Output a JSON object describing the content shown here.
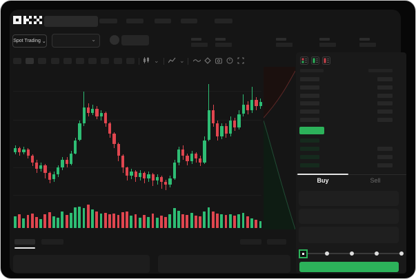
{
  "app": {
    "name": "OKX",
    "logo_text": "OKX"
  },
  "icons": {
    "chevron_down": "⌄"
  },
  "header": {
    "nav_item_count": 5
  },
  "market_bar": {
    "market_selector_label": "Spot Trading",
    "stat_group_count": 5
  },
  "chart_toolbar": {
    "timeframe_count": 10,
    "active_timeframe_index": 1,
    "tool_icons": [
      "candle-type-icon",
      "indicators-icon",
      "line-tool-icon",
      "draw-icon",
      "camera-icon",
      "replay-icon",
      "fullscreen-icon"
    ]
  },
  "chart_data": {
    "type": "candlestick",
    "up_color": "#2ebd74",
    "down_color": "#e0464f",
    "value_scale": [
      0,
      100
    ],
    "grid": true,
    "candles": [
      [
        36,
        41,
        34,
        39
      ],
      [
        39,
        40,
        33,
        36
      ],
      [
        36,
        40,
        34,
        38
      ],
      [
        38,
        39,
        31,
        33
      ],
      [
        33,
        34,
        25,
        28
      ],
      [
        28,
        30,
        20,
        23
      ],
      [
        23,
        28,
        21,
        26
      ],
      [
        26,
        27,
        16,
        20
      ],
      [
        20,
        21,
        12,
        15
      ],
      [
        15,
        21,
        13,
        19
      ],
      [
        19,
        26,
        17,
        24
      ],
      [
        24,
        32,
        22,
        30
      ],
      [
        30,
        32,
        24,
        27
      ],
      [
        27,
        37,
        26,
        35
      ],
      [
        35,
        47,
        34,
        45
      ],
      [
        45,
        60,
        44,
        58
      ],
      [
        58,
        82,
        56,
        70
      ],
      [
        70,
        73,
        63,
        66
      ],
      [
        66,
        72,
        64,
        69
      ],
      [
        69,
        71,
        61,
        63
      ],
      [
        63,
        68,
        60,
        66
      ],
      [
        66,
        67,
        55,
        58
      ],
      [
        58,
        59,
        47,
        50
      ],
      [
        50,
        51,
        39,
        42
      ],
      [
        42,
        43,
        29,
        33
      ],
      [
        33,
        34,
        20,
        24
      ],
      [
        24,
        25,
        14,
        18
      ],
      [
        18,
        23,
        15,
        21
      ],
      [
        21,
        22,
        13,
        17
      ],
      [
        17,
        22,
        14,
        20
      ],
      [
        20,
        21,
        12,
        16
      ],
      [
        16,
        21,
        13,
        19
      ],
      [
        19,
        20,
        10,
        14
      ],
      [
        14,
        19,
        11,
        17
      ],
      [
        17,
        18,
        8,
        13
      ],
      [
        13,
        15,
        7,
        11
      ],
      [
        11,
        18,
        9,
        16
      ],
      [
        16,
        30,
        15,
        28
      ],
      [
        28,
        40,
        26,
        38
      ],
      [
        38,
        41,
        30,
        33
      ],
      [
        33,
        35,
        26,
        29
      ],
      [
        29,
        37,
        27,
        35
      ],
      [
        35,
        36,
        28,
        31
      ],
      [
        31,
        33,
        25,
        28
      ],
      [
        28,
        48,
        27,
        45
      ],
      [
        45,
        88,
        44,
        68
      ],
      [
        68,
        72,
        55,
        58
      ],
      [
        58,
        60,
        45,
        48
      ],
      [
        48,
        58,
        46,
        56
      ],
      [
        56,
        58,
        47,
        50
      ],
      [
        50,
        63,
        48,
        60
      ],
      [
        60,
        62,
        52,
        55
      ],
      [
        55,
        68,
        53,
        65
      ],
      [
        65,
        80,
        63,
        72
      ],
      [
        72,
        75,
        65,
        68
      ],
      [
        68,
        86,
        66,
        76
      ],
      [
        76,
        78,
        68,
        71
      ],
      [
        71,
        77,
        69,
        74
      ]
    ],
    "volumes": [
      50,
      58,
      42,
      55,
      62,
      48,
      38,
      60,
      68,
      50,
      45,
      72,
      55,
      65,
      88,
      92,
      85,
      100,
      78,
      70,
      62,
      66,
      58,
      62,
      55,
      68,
      72,
      52,
      58,
      45,
      55,
      48,
      62,
      45,
      52,
      48,
      58,
      85,
      75,
      60,
      55,
      65,
      52,
      50,
      70,
      88,
      72,
      62,
      58,
      55,
      60,
      52,
      58,
      65,
      50,
      42,
      35,
      30
    ],
    "depth_overlay": {
      "ask_tint": "#1b100e",
      "bid_tint": "#0e1c13"
    }
  },
  "orderbook": {
    "view_modes": [
      "book-combined-icon",
      "book-bids-icon",
      "book-asks-icon"
    ],
    "ask_rows": 6,
    "bid_rows": 4,
    "last_price_color": "#2cb25a",
    "bid_bar_tint": "#152a1d",
    "ask_bar_tint": "#272727"
  },
  "trade_panel": {
    "buy_label": "Buy",
    "sell_label": "Sell",
    "active_tab": "buy",
    "input_count": 3,
    "amount_slider": {
      "steps": 5,
      "active_index": 0
    },
    "accent_green": "#2cb25a"
  },
  "bottom_bar": {
    "left_tab_count": 2,
    "right_tab_count": 2,
    "active_tab_index": 0,
    "panel_count": 2
  }
}
